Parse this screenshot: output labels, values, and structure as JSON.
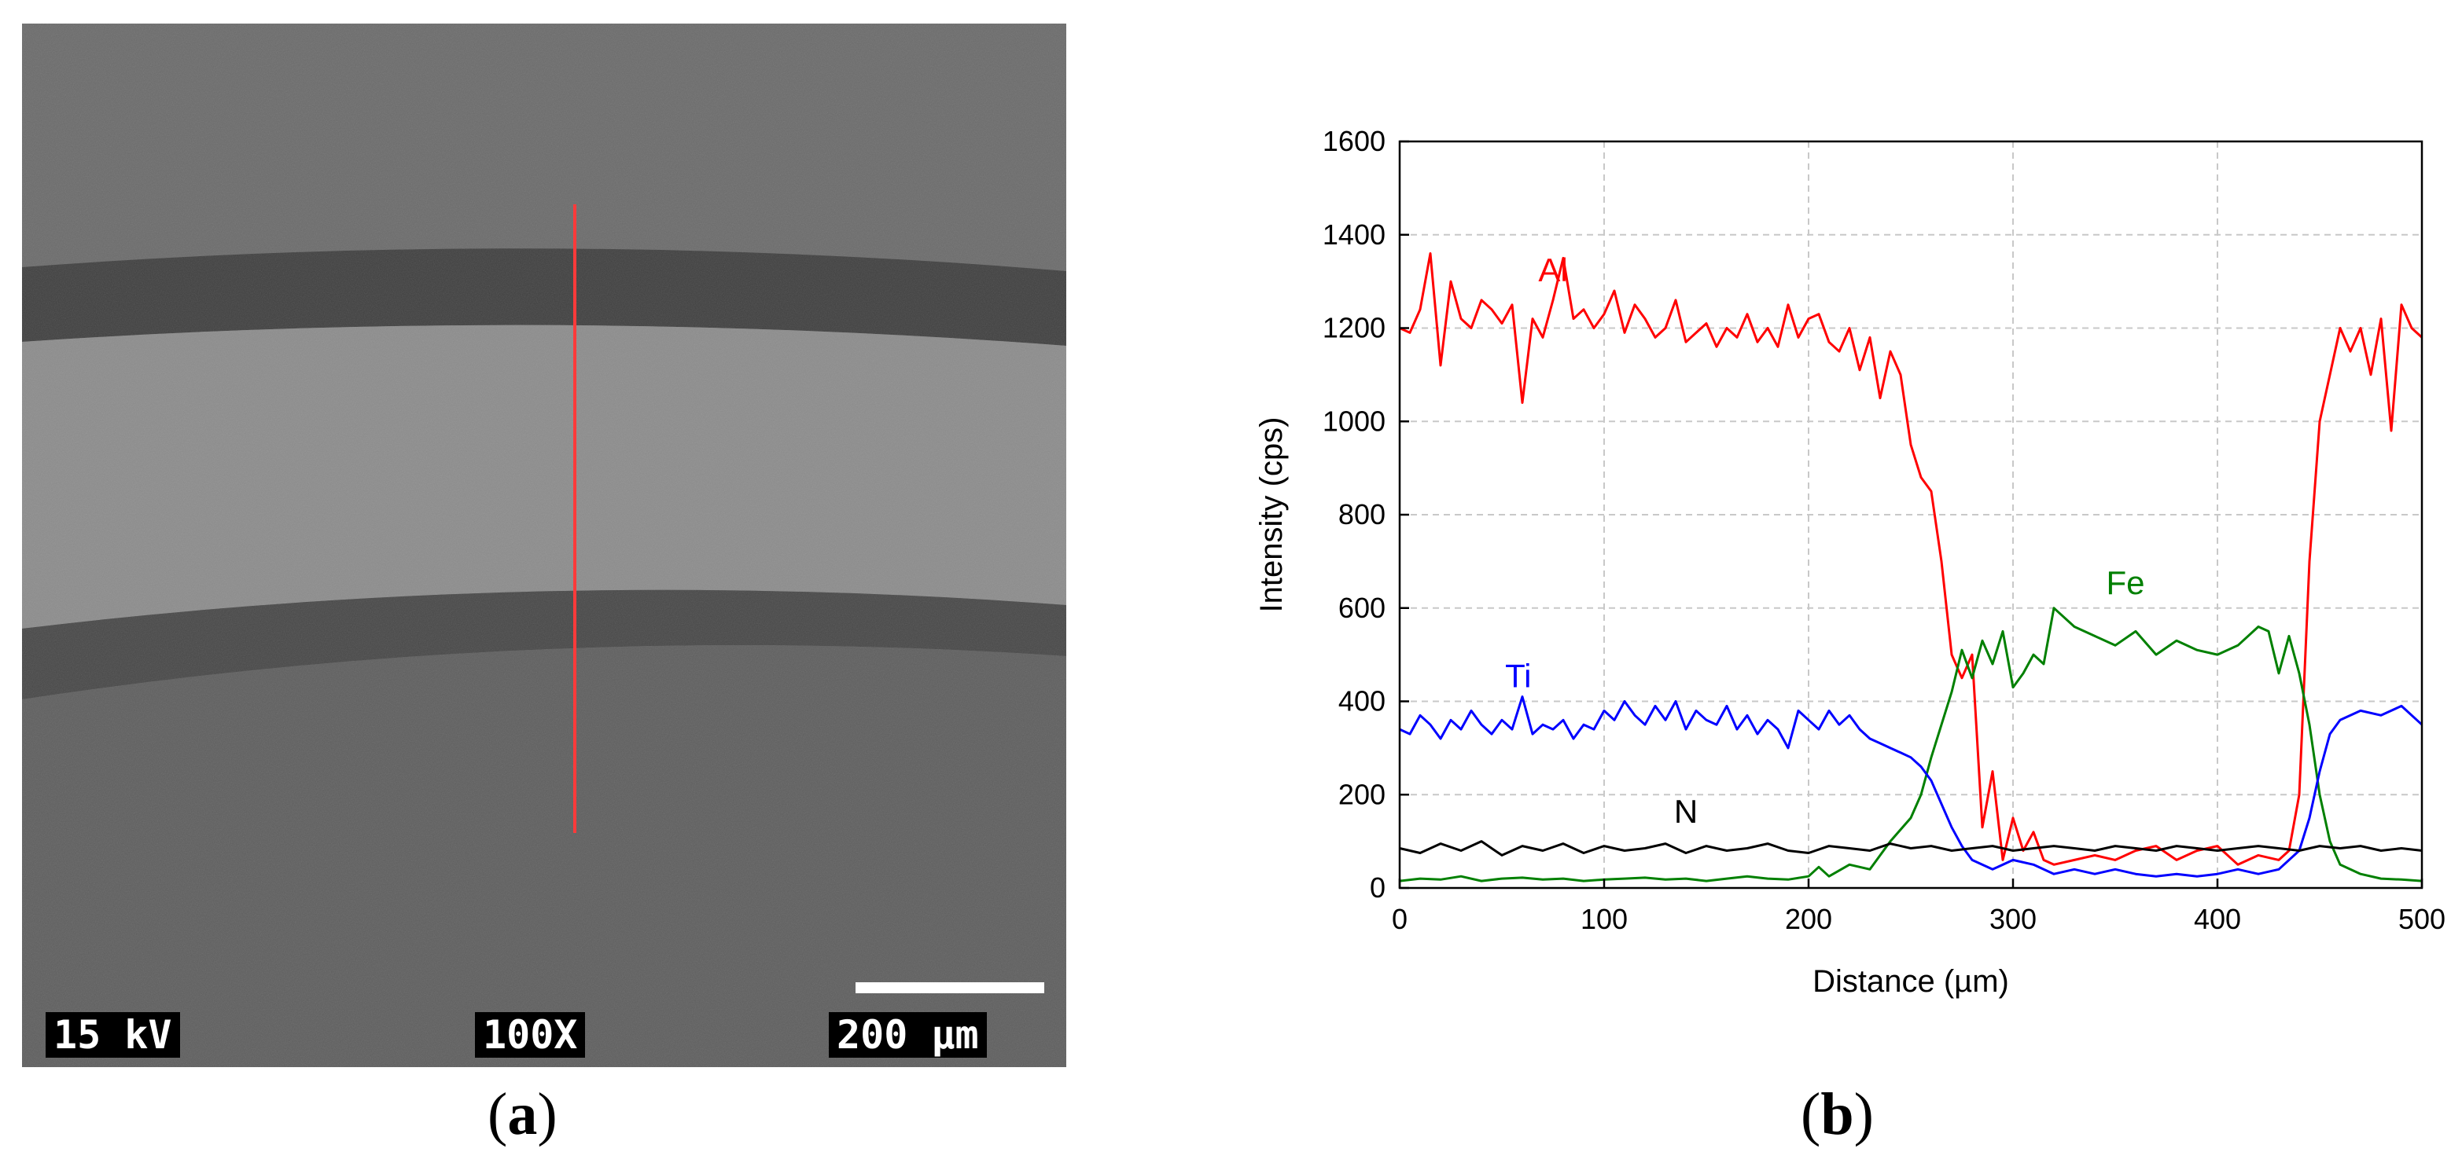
{
  "panel_a": {
    "voltage_label": "15 kV",
    "magnification_label": "100X",
    "scalebar_label": "200 µm",
    "caption": "a"
  },
  "panel_b": {
    "caption": "b"
  },
  "chart_data": {
    "type": "line",
    "xlabel": "Distance (µm)",
    "ylabel": "Intensity (cps)",
    "xlim": [
      0,
      500
    ],
    "ylim": [
      0,
      1600
    ],
    "xticks": [
      0,
      100,
      200,
      300,
      400,
      500
    ],
    "yticks": [
      0,
      200,
      400,
      600,
      800,
      1000,
      1200,
      1400,
      1600
    ],
    "grid": true,
    "series": [
      {
        "name": "Al",
        "color": "#ff0000",
        "label_at": [
          75,
          1300
        ],
        "x": [
          0,
          5,
          10,
          15,
          20,
          25,
          30,
          35,
          40,
          45,
          50,
          55,
          60,
          65,
          70,
          75,
          80,
          85,
          90,
          95,
          100,
          105,
          110,
          115,
          120,
          125,
          130,
          135,
          140,
          145,
          150,
          155,
          160,
          165,
          170,
          175,
          180,
          185,
          190,
          195,
          200,
          205,
          210,
          215,
          220,
          225,
          230,
          235,
          240,
          245,
          250,
          255,
          260,
          265,
          270,
          275,
          280,
          285,
          290,
          295,
          300,
          305,
          310,
          315,
          320,
          330,
          340,
          350,
          360,
          370,
          380,
          390,
          400,
          410,
          420,
          430,
          435,
          440,
          445,
          450,
          455,
          460,
          465,
          470,
          475,
          480,
          485,
          490,
          495,
          500
        ],
        "values": [
          1200,
          1190,
          1240,
          1360,
          1120,
          1300,
          1220,
          1200,
          1260,
          1240,
          1210,
          1250,
          1040,
          1220,
          1180,
          1260,
          1350,
          1220,
          1240,
          1200,
          1230,
          1280,
          1190,
          1250,
          1220,
          1180,
          1200,
          1260,
          1170,
          1190,
          1210,
          1160,
          1200,
          1180,
          1230,
          1170,
          1200,
          1160,
          1250,
          1180,
          1220,
          1230,
          1170,
          1150,
          1200,
          1110,
          1180,
          1050,
          1150,
          1100,
          950,
          880,
          850,
          700,
          500,
          450,
          500,
          130,
          250,
          60,
          150,
          80,
          120,
          60,
          50,
          60,
          70,
          60,
          80,
          90,
          60,
          80,
          90,
          50,
          70,
          60,
          80,
          200,
          700,
          1000,
          1100,
          1200,
          1150,
          1200,
          1100,
          1220,
          980,
          1250,
          1200,
          1180
        ]
      },
      {
        "name": "Fe",
        "color": "#008000",
        "label_at": [
          355,
          630
        ],
        "x": [
          0,
          10,
          20,
          30,
          40,
          50,
          60,
          70,
          80,
          90,
          100,
          110,
          120,
          130,
          140,
          150,
          160,
          170,
          180,
          190,
          200,
          205,
          210,
          220,
          230,
          240,
          250,
          255,
          260,
          265,
          270,
          275,
          280,
          285,
          290,
          295,
          300,
          305,
          310,
          315,
          320,
          330,
          340,
          350,
          360,
          370,
          380,
          390,
          400,
          410,
          420,
          425,
          430,
          435,
          440,
          445,
          450,
          455,
          460,
          470,
          480,
          490,
          500
        ],
        "values": [
          15,
          20,
          18,
          25,
          15,
          20,
          22,
          18,
          20,
          15,
          18,
          20,
          22,
          18,
          20,
          15,
          20,
          25,
          20,
          18,
          25,
          45,
          25,
          50,
          40,
          100,
          150,
          200,
          280,
          350,
          420,
          510,
          450,
          530,
          480,
          550,
          430,
          460,
          500,
          480,
          600,
          560,
          540,
          520,
          550,
          500,
          530,
          510,
          500,
          520,
          560,
          550,
          460,
          540,
          460,
          350,
          200,
          100,
          50,
          30,
          20,
          18,
          15
        ]
      },
      {
        "name": "Ti",
        "color": "#0000ff",
        "label_at": [
          58,
          430
        ],
        "x": [
          0,
          5,
          10,
          15,
          20,
          25,
          30,
          35,
          40,
          45,
          50,
          55,
          60,
          65,
          70,
          75,
          80,
          85,
          90,
          95,
          100,
          105,
          110,
          115,
          120,
          125,
          130,
          135,
          140,
          145,
          150,
          155,
          160,
          165,
          170,
          175,
          180,
          185,
          190,
          195,
          200,
          205,
          210,
          215,
          220,
          225,
          230,
          235,
          240,
          245,
          250,
          255,
          260,
          265,
          270,
          275,
          280,
          290,
          300,
          310,
          320,
          330,
          340,
          350,
          360,
          370,
          380,
          390,
          400,
          410,
          420,
          430,
          440,
          445,
          450,
          455,
          460,
          470,
          480,
          490,
          500
        ],
        "values": [
          340,
          330,
          370,
          350,
          320,
          360,
          340,
          380,
          350,
          330,
          360,
          340,
          410,
          330,
          350,
          340,
          360,
          320,
          350,
          340,
          380,
          360,
          400,
          370,
          350,
          390,
          360,
          400,
          340,
          380,
          360,
          350,
          390,
          340,
          370,
          330,
          360,
          340,
          300,
          380,
          360,
          340,
          380,
          350,
          370,
          340,
          320,
          310,
          300,
          290,
          280,
          260,
          230,
          180,
          130,
          90,
          60,
          40,
          60,
          50,
          30,
          40,
          30,
          40,
          30,
          25,
          30,
          25,
          30,
          40,
          30,
          40,
          80,
          150,
          250,
          330,
          360,
          380,
          370,
          390,
          350
        ]
      },
      {
        "name": "N",
        "color": "#000000",
        "label_at": [
          140,
          140
        ],
        "x": [
          0,
          10,
          20,
          30,
          40,
          50,
          60,
          70,
          80,
          90,
          100,
          110,
          120,
          130,
          140,
          150,
          160,
          170,
          180,
          190,
          200,
          210,
          220,
          230,
          240,
          250,
          260,
          270,
          280,
          290,
          300,
          310,
          320,
          330,
          340,
          350,
          360,
          370,
          380,
          390,
          400,
          410,
          420,
          430,
          440,
          450,
          460,
          470,
          480,
          490,
          500
        ],
        "values": [
          85,
          75,
          95,
          80,
          100,
          70,
          90,
          80,
          95,
          75,
          90,
          80,
          85,
          95,
          75,
          90,
          80,
          85,
          95,
          80,
          75,
          90,
          85,
          80,
          95,
          85,
          90,
          80,
          85,
          90,
          80,
          85,
          90,
          85,
          80,
          90,
          85,
          80,
          90,
          85,
          80,
          85,
          90,
          85,
          80,
          90,
          85,
          90,
          80,
          85,
          80
        ]
      }
    ]
  }
}
